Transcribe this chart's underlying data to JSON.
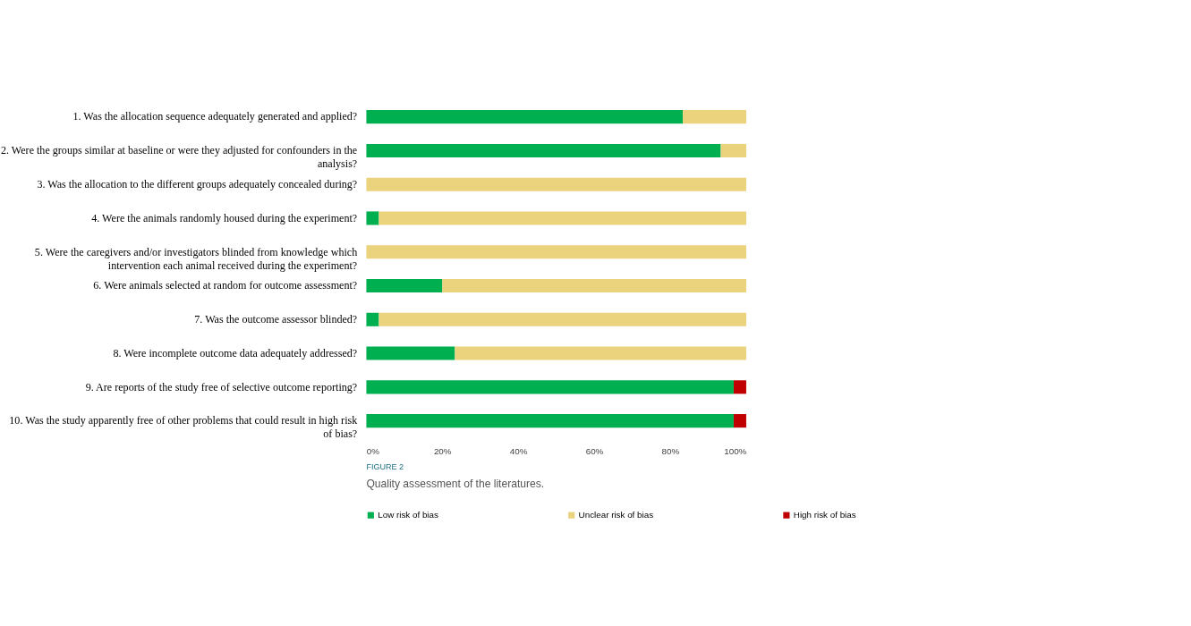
{
  "chart_data": {
    "type": "bar",
    "orientation": "horizontal",
    "stacked": true,
    "categories": [
      "1. Was the allocation sequence adequately generated and applied?",
      "2. Were the groups similar at baseline or were they adjusted for confounders in the analysis?",
      "3. Was the allocation to the different groups adequately concealed during?",
      "4. Were the animals randomly housed during the experiment?",
      "5. Were the caregivers and/or investigators blinded from knowledge which intervention each animal received during the experiment?",
      "6. Were animals selected at random for outcome assessment?",
      "7. Was the outcome assessor blinded?",
      "8. Were incomplete outcome data adequately addressed?",
      "9. Are reports of the study free of selective outcome reporting?",
      "10. Was the study apparently free of other problems that could result in high risk of bias?"
    ],
    "series": [
      {
        "name": "Low risk of bias",
        "color": "#00b050",
        "values": [
          83.3,
          93.3,
          0,
          3.3,
          0,
          20,
          3.3,
          23.3,
          96.7,
          96.7
        ]
      },
      {
        "name": "Unclear risk of bias",
        "color": "#ebd27c",
        "values": [
          16.7,
          6.7,
          100,
          96.7,
          100,
          80,
          96.7,
          76.7,
          0,
          0
        ]
      },
      {
        "name": "High risk of bias",
        "color": "#c00000",
        "values": [
          0,
          0,
          0,
          0,
          0,
          0,
          0,
          0,
          3.3,
          3.3
        ]
      }
    ],
    "xlim": [
      0,
      100
    ],
    "xticks": [
      {
        "value": 0,
        "label": "0%"
      },
      {
        "value": 20,
        "label": "20%"
      },
      {
        "value": 40,
        "label": "40%"
      },
      {
        "value": 60,
        "label": "60%"
      },
      {
        "value": 80,
        "label": "80%"
      },
      {
        "value": 100,
        "label": "100%"
      }
    ],
    "grid": false,
    "legend": "bottom",
    "annotations": [
      "FIGURE 2",
      "Quality assessment of the literatures."
    ]
  }
}
